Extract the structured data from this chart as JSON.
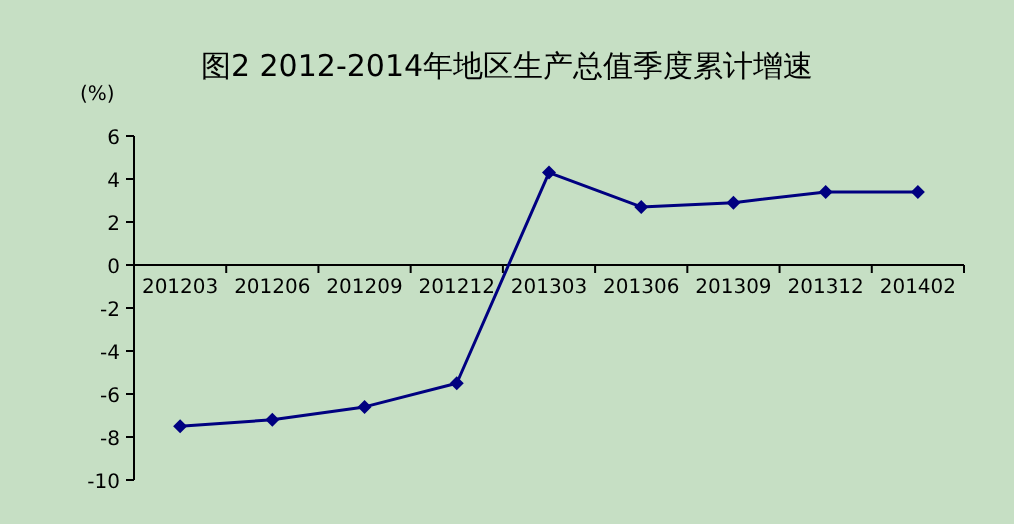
{
  "chart_data": {
    "type": "line",
    "title": "图2 2012-2014年地区生产总值季度累计增速",
    "ylabel": "(%)",
    "categories": [
      "201203",
      "201206",
      "201209",
      "201212",
      "201303",
      "201306",
      "201309",
      "201312",
      "201402"
    ],
    "series": [
      {
        "color": "#000080",
        "values": [
          -7.5,
          -7.2,
          -6.6,
          -5.5,
          4.3,
          2.7,
          2.9,
          3.4,
          3.4
        ]
      }
    ],
    "ylim": [
      -10,
      6
    ],
    "yticks": [
      -10,
      -8,
      -6,
      -4,
      -2,
      0,
      2,
      4,
      6
    ],
    "marker": "diamond",
    "line_style": "solid",
    "grid": false
  }
}
